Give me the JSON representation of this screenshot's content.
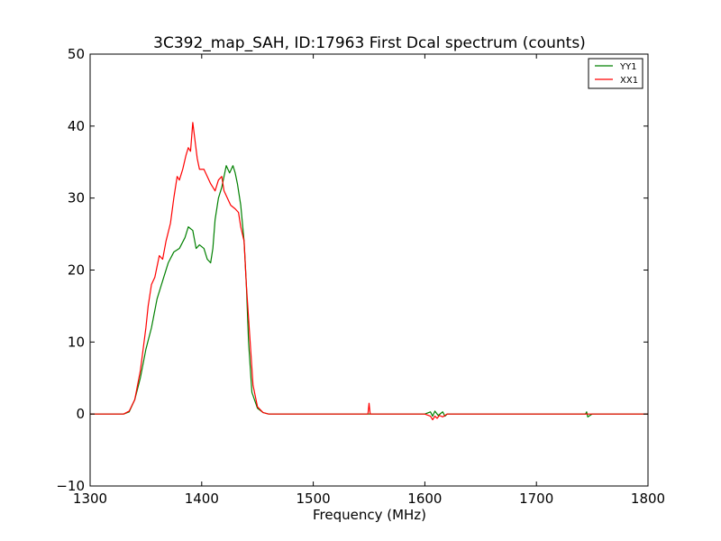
{
  "chart_data": {
    "type": "line",
    "title": "3C392_map_SAH, ID:17963 First Dcal spectrum (counts)",
    "xlabel": "Frequency (MHz)",
    "ylabel": "",
    "xlim": [
      1300,
      1800
    ],
    "ylim": [
      -10,
      50
    ],
    "x_ticks": [
      1300,
      1400,
      1500,
      1600,
      1700,
      1800
    ],
    "y_ticks": [
      -10,
      0,
      10,
      20,
      30,
      40,
      50
    ],
    "x_tick_labels": [
      "1300",
      "1400",
      "1500",
      "1600",
      "1700",
      "1800"
    ],
    "y_tick_labels": [
      "−10",
      "0",
      "10",
      "20",
      "30",
      "40",
      "50"
    ],
    "grid": false,
    "legend_position": "top-right",
    "series": [
      {
        "name": "YY1",
        "color": "#008000",
        "x": [
          1300,
          1330,
          1335,
          1340,
          1345,
          1350,
          1355,
          1360,
          1365,
          1370,
          1375,
          1380,
          1385,
          1388,
          1392,
          1395,
          1398,
          1402,
          1405,
          1408,
          1410,
          1412,
          1415,
          1418,
          1420,
          1422,
          1425,
          1428,
          1430,
          1432,
          1435,
          1438,
          1440,
          1442,
          1445,
          1450,
          1455,
          1460,
          1470,
          1500,
          1550,
          1600,
          1605,
          1607,
          1609,
          1612,
          1616,
          1618,
          1620,
          1650,
          1700,
          1730,
          1744,
          1745,
          1746,
          1750,
          1800
        ],
        "y": [
          0,
          0,
          0.3,
          2,
          5,
          9,
          12,
          16,
          18.5,
          21,
          22.5,
          23,
          24.5,
          26,
          25.5,
          23,
          23.5,
          23,
          21.5,
          21,
          23,
          27,
          30,
          31.5,
          33,
          34.5,
          33.5,
          34.5,
          33.5,
          32,
          29,
          24,
          18,
          10,
          3,
          0.8,
          0.2,
          0,
          0,
          0,
          0,
          0,
          0.3,
          -0.3,
          0.4,
          -0.2,
          0.3,
          -0.3,
          0,
          0,
          0,
          0,
          0,
          0.3,
          -0.4,
          0,
          0
        ]
      },
      {
        "name": "XX1",
        "color": "#ff0000",
        "x": [
          1300,
          1330,
          1335,
          1340,
          1345,
          1350,
          1352,
          1355,
          1358,
          1362,
          1365,
          1368,
          1372,
          1375,
          1378,
          1380,
          1383,
          1386,
          1388,
          1390,
          1392,
          1394,
          1396,
          1398,
          1402,
          1405,
          1408,
          1412,
          1415,
          1418,
          1420,
          1423,
          1426,
          1430,
          1433,
          1435,
          1438,
          1440,
          1443,
          1446,
          1450,
          1455,
          1460,
          1470,
          1500,
          1549,
          1550,
          1551,
          1600,
          1605,
          1607,
          1609,
          1611,
          1613,
          1616,
          1618,
          1620,
          1650,
          1700,
          1800
        ],
        "y": [
          0,
          0,
          0.4,
          2,
          6,
          12,
          15,
          18,
          19,
          22,
          21.5,
          24,
          26.5,
          30,
          33,
          32.5,
          34,
          36,
          37,
          36.5,
          40.5,
          38,
          35.5,
          34,
          34,
          33,
          32,
          31,
          32.5,
          33,
          31,
          30,
          29,
          28.5,
          28,
          26,
          24,
          18,
          11,
          4,
          1,
          0.2,
          0,
          0,
          0,
          0,
          1.5,
          0,
          0,
          -0.3,
          -0.8,
          -0.3,
          -0.6,
          -0.2,
          -0.4,
          -0.2,
          0,
          0,
          0,
          0
        ]
      }
    ]
  }
}
